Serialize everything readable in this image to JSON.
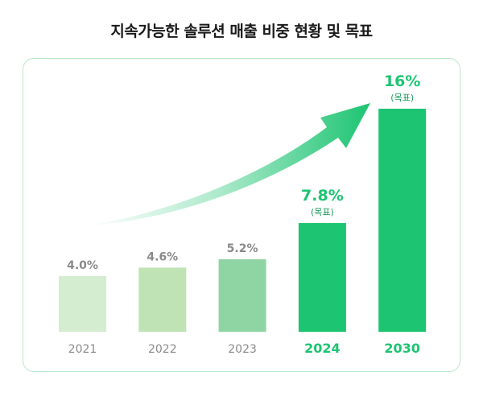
{
  "chart_data": {
    "type": "bar",
    "title": "지속가능한 솔루션 매출 비중 현황 및 목표",
    "categories": [
      "2021",
      "2022",
      "2023",
      "2024",
      "2030"
    ],
    "values": [
      4.0,
      4.6,
      5.2,
      7.8,
      16
    ],
    "value_labels": [
      "4.0%",
      "4.6%",
      "5.2%",
      "7.8%",
      "16%"
    ],
    "target_note": "(목표)",
    "target_flags": [
      false,
      false,
      false,
      true,
      true
    ],
    "bar_colors": [
      "#d4ecd0",
      "#bfe3b5",
      "#8fd4a3",
      "#1dc472",
      "#1dc472"
    ],
    "highlight_color": "#1dc472",
    "muted_label_color": "#8a8a8a",
    "ylim": [
      0,
      16
    ],
    "grid": false,
    "legend": "none",
    "annotation": "growth-arrow"
  }
}
